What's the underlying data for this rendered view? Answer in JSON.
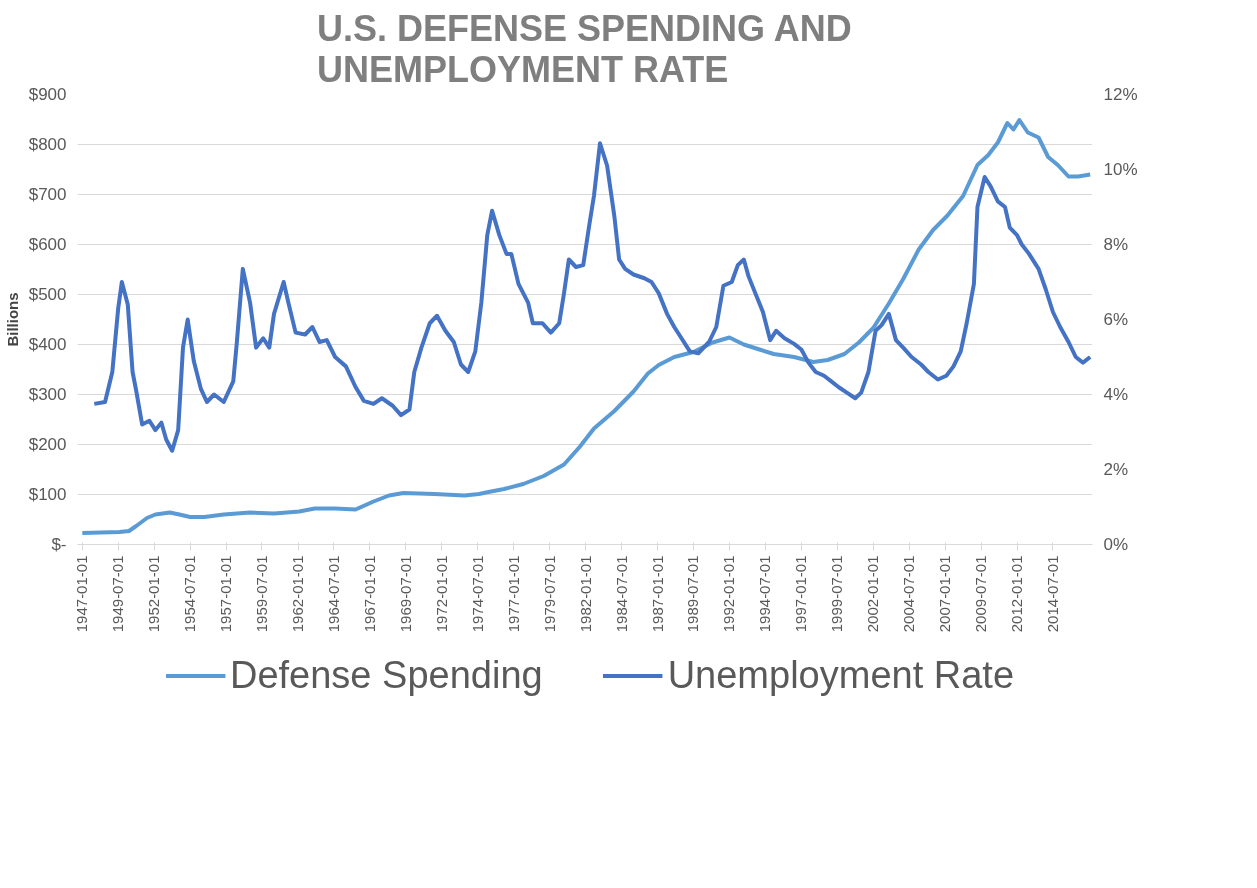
{
  "chart_data": {
    "type": "line",
    "title": "U.S. DEFENSE SPENDING AND UNEMPLOYMENT RATE",
    "ylabel": "Billions",
    "xlim": [
      "1946-09-01",
      "2017-04-01"
    ],
    "ylim": [
      0,
      900
    ],
    "y2lim": [
      0,
      12
    ],
    "xticks": [
      "1947-01-01",
      "1949-07-01",
      "1952-01-01",
      "1954-07-01",
      "1957-01-01",
      "1959-07-01",
      "1962-01-01",
      "1964-07-01",
      "1967-01-01",
      "1969-07-01",
      "1972-01-01",
      "1974-07-01",
      "1977-01-01",
      "1979-07-01",
      "1982-01-01",
      "1984-07-01",
      "1987-01-01",
      "1989-07-01",
      "1992-01-01",
      "1994-07-01",
      "1997-01-01",
      "1999-07-01",
      "2002-01-01",
      "2004-07-01",
      "2007-01-01",
      "2009-07-01",
      "2012-01-01",
      "2014-07-01"
    ],
    "yticks": [
      {
        "value": 0,
        "label": "$-"
      },
      {
        "value": 100,
        "label": "$100"
      },
      {
        "value": 200,
        "label": "$200"
      },
      {
        "value": 300,
        "label": "$300"
      },
      {
        "value": 400,
        "label": "$400"
      },
      {
        "value": 500,
        "label": "$500"
      },
      {
        "value": 600,
        "label": "$600"
      },
      {
        "value": 700,
        "label": "$700"
      },
      {
        "value": 800,
        "label": "$800"
      },
      {
        "value": 900,
        "label": "$900"
      }
    ],
    "y2ticks": [
      {
        "value": 0,
        "label": "0%"
      },
      {
        "value": 2,
        "label": "2%"
      },
      {
        "value": 4,
        "label": "4%"
      },
      {
        "value": 6,
        "label": "6%"
      },
      {
        "value": 8,
        "label": "8%"
      },
      {
        "value": 10,
        "label": "10%"
      },
      {
        "value": 12,
        "label": "12%"
      }
    ],
    "grid": "y",
    "legend": "bottom",
    "line_style": "solid",
    "marker": "none",
    "series": [
      {
        "name": "Defense Spending",
        "color": "#5b9bd5",
        "x": [
          "1947-01",
          "1949-08",
          "1950-04",
          "1950-10",
          "1951-07",
          "1952-02",
          "1953-02",
          "1953-10",
          "1954-07",
          "1955-07",
          "1956-11",
          "1958-09",
          "1960-05",
          "1962-02",
          "1963-03",
          "1964-08",
          "1966-01",
          "1967-04",
          "1968-05",
          "1969-05",
          "1971-07",
          "1973-08",
          "1974-08",
          "1975-04",
          "1976-05",
          "1977-09",
          "1979-02",
          "1980-07",
          "1981-08",
          "1982-08",
          "1984-01",
          "1985-05",
          "1986-05",
          "1987-02",
          "1988-03",
          "1989-07",
          "1990-11",
          "1992-01",
          "1993-01",
          "1994-02",
          "1995-02",
          "1996-07",
          "1997-11",
          "1998-11",
          "2000-01",
          "2001-01",
          "2002-01",
          "2003-02",
          "2004-02",
          "2005-03",
          "2006-03",
          "2007-03",
          "2008-04",
          "2009-04",
          "2010-01",
          "2010-09",
          "2011-05",
          "2011-10",
          "2012-03",
          "2012-10",
          "2013-07",
          "2014-03",
          "2014-11",
          "2015-08",
          "2016-04",
          "2017-02"
        ],
        "values": [
          23,
          25,
          27,
          37,
          53,
          60,
          64,
          60,
          55,
          55,
          60,
          64,
          62,
          66,
          72,
          72,
          70,
          86,
          98,
          103,
          101,
          98,
          101,
          105,
          111,
          121,
          137,
          160,
          195,
          232,
          267,
          306,
          342,
          359,
          375,
          385,
          404,
          414,
          400,
          390,
          381,
          375,
          365,
          369,
          381,
          404,
          433,
          482,
          531,
          590,
          629,
          658,
          697,
          759,
          779,
          804,
          843,
          830,
          849,
          824,
          814,
          775,
          759,
          736,
          736,
          740
        ]
      },
      {
        "name": "Unemployment Rate",
        "color": "#4472c4",
        "axis": "y2",
        "x": [
          "1947-11",
          "1948-08",
          "1949-02",
          "1949-07",
          "1949-10",
          "1950-03",
          "1950-07",
          "1950-10",
          "1951-03",
          "1951-09",
          "1952-02",
          "1952-07",
          "1952-11",
          "1953-04",
          "1953-09",
          "1954-01",
          "1954-05",
          "1954-10",
          "1955-04",
          "1955-09",
          "1956-03",
          "1956-11",
          "1957-07",
          "1957-10",
          "1958-03",
          "1958-09",
          "1959-02",
          "1959-08",
          "1960-01",
          "1960-05",
          "1961-01",
          "1961-05",
          "1961-11",
          "1962-07",
          "1963-01",
          "1963-07",
          "1964-01",
          "1964-08",
          "1965-05",
          "1966-01",
          "1966-08",
          "1967-04",
          "1967-11",
          "1968-08",
          "1969-03",
          "1969-10",
          "1970-02",
          "1970-08",
          "1971-03",
          "1971-09",
          "1972-04",
          "1972-11",
          "1973-05",
          "1973-11",
          "1974-05",
          "1974-10",
          "1975-03",
          "1975-07",
          "1976-01",
          "1976-07",
          "1976-11",
          "1977-05",
          "1978-01",
          "1978-05",
          "1979-01",
          "1979-08",
          "1980-03",
          "1980-07",
          "1980-11",
          "1981-05",
          "1981-11",
          "1982-04",
          "1982-08",
          "1983-01",
          "1983-07",
          "1984-01",
          "1984-05",
          "1984-10",
          "1985-05",
          "1986-02",
          "1986-08",
          "1987-02",
          "1987-09",
          "1988-03",
          "1988-09",
          "1989-04",
          "1989-11",
          "1990-08",
          "1991-02",
          "1991-08",
          "1992-03",
          "1992-08",
          "1993-01",
          "1993-05",
          "1993-10",
          "1994-05",
          "1994-11",
          "1995-04",
          "1995-11",
          "1996-07",
          "1997-01",
          "1997-07",
          "1998-01",
          "1998-08",
          "1999-02",
          "1999-08",
          "2000-03",
          "2000-10",
          "2001-03",
          "2001-09",
          "2002-03",
          "2002-08",
          "2003-02",
          "2003-08",
          "2004-02",
          "2004-09",
          "2005-05",
          "2005-11",
          "2006-07",
          "2007-02",
          "2007-08",
          "2008-02",
          "2008-07",
          "2009-01",
          "2009-04",
          "2009-10",
          "2010-03",
          "2010-09",
          "2011-03",
          "2011-07",
          "2012-01",
          "2012-05",
          "2012-11",
          "2013-07",
          "2014-01",
          "2014-07",
          "2015-01",
          "2015-08",
          "2016-02",
          "2016-08",
          "2017-02"
        ],
        "values": [
          3.75,
          3.8,
          4.6,
          6.3,
          7.0,
          6.4,
          4.6,
          4.1,
          3.2,
          3.3,
          3.05,
          3.25,
          2.8,
          2.5,
          3.05,
          5.25,
          6.0,
          4.9,
          4.15,
          3.8,
          4.0,
          3.8,
          4.35,
          5.4,
          7.35,
          6.45,
          5.25,
          5.5,
          5.25,
          6.15,
          7.0,
          6.45,
          5.65,
          5.6,
          5.8,
          5.4,
          5.45,
          5.0,
          4.75,
          4.2,
          3.83,
          3.75,
          3.9,
          3.7,
          3.45,
          3.6,
          4.6,
          5.25,
          5.9,
          6.1,
          5.7,
          5.4,
          4.8,
          4.6,
          5.15,
          6.45,
          8.25,
          8.9,
          8.25,
          7.75,
          7.75,
          6.95,
          6.45,
          5.9,
          5.9,
          5.65,
          5.9,
          6.7,
          7.6,
          7.4,
          7.45,
          8.5,
          9.3,
          10.7,
          10.1,
          8.75,
          7.6,
          7.35,
          7.2,
          7.1,
          7.0,
          6.7,
          6.15,
          5.8,
          5.5,
          5.15,
          5.1,
          5.4,
          5.8,
          6.9,
          7.0,
          7.45,
          7.6,
          7.15,
          6.75,
          6.2,
          5.45,
          5.7,
          5.5,
          5.35,
          5.2,
          4.85,
          4.6,
          4.5,
          4.35,
          4.2,
          4.05,
          3.9,
          4.05,
          4.6,
          5.7,
          5.85,
          6.15,
          5.45,
          5.25,
          5.0,
          4.8,
          4.6,
          4.4,
          4.5,
          4.75,
          5.15,
          5.9,
          6.95,
          9.0,
          9.8,
          9.55,
          9.15,
          9.0,
          8.45,
          8.25,
          8.0,
          7.75,
          7.35,
          6.8,
          6.2,
          5.8,
          5.4,
          5.0,
          4.85,
          5.0
        ]
      }
    ]
  }
}
